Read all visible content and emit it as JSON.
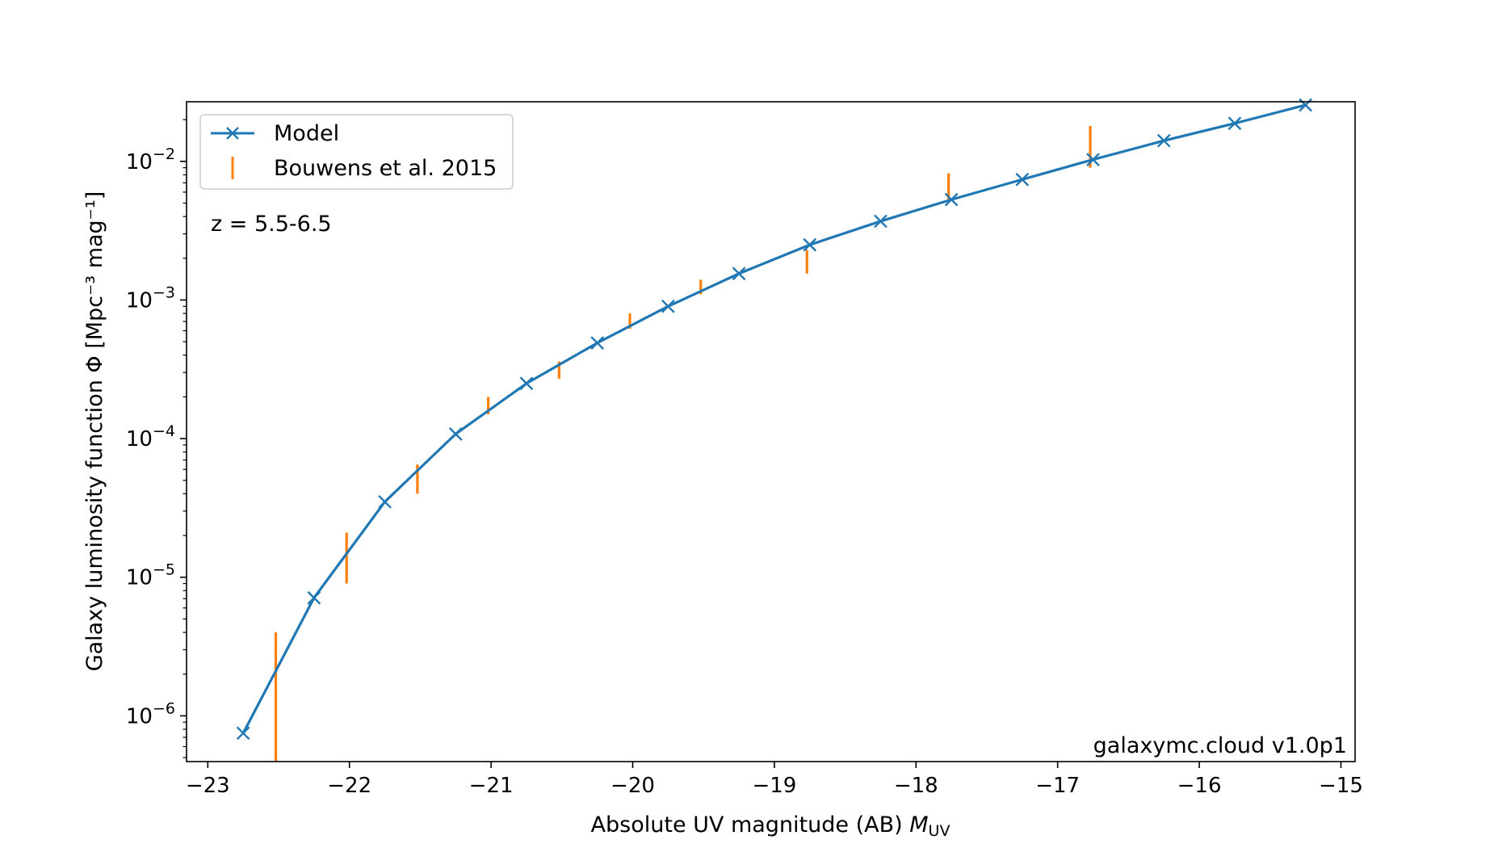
{
  "colors": {
    "model": "#1f77b4",
    "data": "#ff7f0e",
    "axis": "#000000",
    "legend_border": "#cccccc"
  },
  "chart_data": {
    "type": "line",
    "title": "",
    "xlabel": "Absolute UV magnitude (AB) ",
    "xlabel_symbol": "M",
    "xlabel_sub": "UV",
    "ylabel": "Galaxy luminosity function Φ [Mpc⁻³ mag⁻¹]",
    "xlim": [
      -23.15,
      -14.9
    ],
    "ylim_log10": [
      -6.33,
      -1.57
    ],
    "yscale": "log",
    "grid": false,
    "legend_position": "top-left",
    "x_ticks": [
      -23,
      -22,
      -21,
      -20,
      -19,
      -18,
      -17,
      -16,
      -15
    ],
    "x_tick_labels": [
      "−23",
      "−22",
      "−21",
      "−20",
      "−19",
      "−18",
      "−17",
      "−16",
      "−15"
    ],
    "y_ticks_exp": [
      -6,
      -5,
      -4,
      -3,
      -2
    ],
    "y_tick_labels": [
      {
        "base": "10",
        "exp": "−6"
      },
      {
        "base": "10",
        "exp": "−5"
      },
      {
        "base": "10",
        "exp": "−4"
      },
      {
        "base": "10",
        "exp": "−3"
      },
      {
        "base": "10",
        "exp": "−2"
      }
    ],
    "annotation": "z = 5.5-6.5",
    "watermark": "galaxymc.cloud v1.0p1",
    "series": [
      {
        "name": "Model",
        "style": "line-x-marker",
        "x": [
          -22.75,
          -22.25,
          -21.75,
          -21.25,
          -20.75,
          -20.25,
          -19.75,
          -19.25,
          -18.75,
          -18.25,
          -17.75,
          -17.25,
          -16.75,
          -16.25,
          -15.75,
          -15.25
        ],
        "y": [
          7.5e-07,
          7.1e-06,
          3.5e-05,
          0.000108,
          0.00025,
          0.00049,
          0.0009,
          0.00155,
          0.0025,
          0.0037,
          0.0053,
          0.0074,
          0.0103,
          0.0141,
          0.0188,
          0.0255
        ]
      },
      {
        "name": "Bouwens et al. 2015",
        "style": "errorbar",
        "x": [
          -22.52,
          -22.02,
          -21.52,
          -21.02,
          -20.52,
          -20.02,
          -19.52,
          -18.77,
          -17.77,
          -16.77
        ],
        "y_low": [
          4.5e-07,
          9e-06,
          4e-05,
          0.00015,
          0.00027,
          0.00062,
          0.0011,
          0.00155,
          0.005,
          0.009
        ],
        "y_high": [
          4e-06,
          2.1e-05,
          6.5e-05,
          0.0002,
          0.00036,
          0.0008,
          0.0014,
          0.0023,
          0.0082,
          0.018
        ]
      }
    ]
  }
}
